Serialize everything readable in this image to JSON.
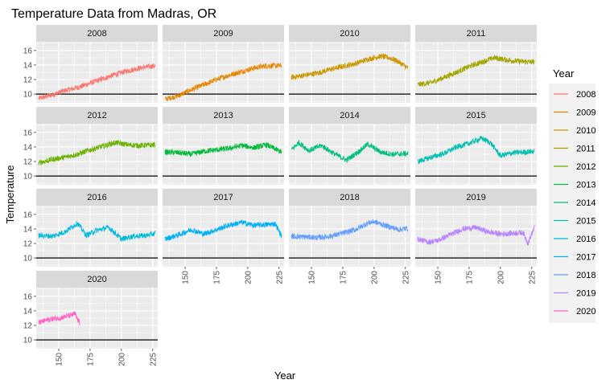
{
  "chart_data": {
    "type": "line",
    "title": "Temperature Data from Madras, OR",
    "xlabel": "Year",
    "ylabel": "Temperature",
    "xlim": [
      132,
      229
    ],
    "ylim": [
      8.8,
      17.2
    ],
    "x_ticks": [
      150,
      175,
      200,
      225
    ],
    "y_ticks": [
      10,
      12,
      14,
      16
    ],
    "reference_line_y": 10,
    "grid": true,
    "facet_layout": {
      "ncol": 4,
      "nrow": 4
    },
    "legend": {
      "title": "Year",
      "placement": "right"
    },
    "series": [
      {
        "name": "2008",
        "color": "#F8766D",
        "x_range": [
          134,
          227
        ],
        "x": [
          134,
          145,
          155,
          165,
          175,
          185,
          195,
          205,
          215,
          227
        ],
        "y": [
          9.4,
          9.9,
          10.5,
          10.9,
          11.5,
          12.1,
          12.7,
          13.2,
          13.6,
          13.9
        ]
      },
      {
        "name": "2009",
        "color": "#E58700",
        "x_range": [
          134,
          227
        ],
        "x": [
          134,
          145,
          155,
          165,
          175,
          185,
          195,
          205,
          215,
          227
        ],
        "y": [
          9.3,
          9.8,
          10.6,
          11.3,
          12.0,
          12.6,
          13.1,
          13.6,
          13.9,
          13.9
        ]
      },
      {
        "name": "2010",
        "color": "#C99800",
        "x_range": [
          134,
          227
        ],
        "x": [
          134,
          145,
          155,
          165,
          175,
          185,
          195,
          205,
          212,
          218,
          227
        ],
        "y": [
          12.3,
          12.6,
          12.9,
          13.4,
          13.8,
          14.2,
          14.8,
          15.2,
          15.0,
          14.6,
          13.6
        ]
      },
      {
        "name": "2011",
        "color": "#A3A500",
        "x_range": [
          134,
          227
        ],
        "x": [
          134,
          145,
          155,
          165,
          175,
          185,
          195,
          205,
          215,
          227
        ],
        "y": [
          11.3,
          11.6,
          12.3,
          13.0,
          13.8,
          14.4,
          15.0,
          14.7,
          14.5,
          14.4
        ]
      },
      {
        "name": "2012",
        "color": "#6BB100",
        "x_range": [
          134,
          227
        ],
        "x": [
          134,
          145,
          155,
          165,
          175,
          185,
          195,
          205,
          215,
          227
        ],
        "y": [
          11.8,
          12.3,
          12.6,
          13.0,
          13.6,
          14.1,
          14.6,
          14.3,
          14.2,
          14.3
        ]
      },
      {
        "name": "2013",
        "color": "#00BA38",
        "x_range": [
          134,
          227
        ],
        "x": [
          134,
          145,
          155,
          165,
          175,
          185,
          195,
          205,
          215,
          227
        ],
        "y": [
          13.3,
          13.2,
          13.0,
          13.4,
          13.6,
          13.8,
          14.2,
          13.9,
          14.3,
          13.3
        ]
      },
      {
        "name": "2014",
        "color": "#00BF7D",
        "x_range": [
          134,
          227
        ],
        "x": [
          134,
          140,
          148,
          158,
          168,
          178,
          188,
          195,
          205,
          215,
          227
        ],
        "y": [
          13.6,
          14.6,
          13.5,
          14.2,
          13.1,
          12.2,
          13.4,
          14.4,
          13.3,
          13.0,
          13.1
        ]
      },
      {
        "name": "2015",
        "color": "#00C0AF",
        "x_range": [
          134,
          227
        ],
        "x": [
          134,
          145,
          155,
          165,
          175,
          185,
          192,
          200,
          210,
          220,
          227
        ],
        "y": [
          12.0,
          12.6,
          13.1,
          14.0,
          14.5,
          15.2,
          14.6,
          12.8,
          13.2,
          13.3,
          13.4
        ]
      },
      {
        "name": "2016",
        "color": "#00BCD8",
        "x_range": [
          134,
          227
        ],
        "x": [
          134,
          145,
          155,
          165,
          172,
          180,
          190,
          200,
          210,
          220,
          227
        ],
        "y": [
          13.1,
          13.0,
          13.6,
          14.8,
          13.1,
          13.8,
          14.2,
          12.6,
          13.0,
          13.1,
          13.4
        ]
      },
      {
        "name": "2017",
        "color": "#00B0F6",
        "x_range": [
          134,
          227
        ],
        "x": [
          134,
          145,
          155,
          165,
          175,
          185,
          195,
          205,
          215,
          222,
          227
        ],
        "y": [
          12.6,
          13.2,
          13.9,
          13.3,
          13.9,
          14.5,
          14.9,
          14.5,
          14.6,
          14.7,
          13.0
        ]
      },
      {
        "name": "2018",
        "color": "#619CFF",
        "x_range": [
          134,
          227
        ],
        "x": [
          134,
          145,
          155,
          165,
          175,
          185,
          195,
          200,
          210,
          220,
          227
        ],
        "y": [
          13.0,
          12.9,
          12.8,
          13.0,
          13.4,
          13.9,
          14.8,
          15.0,
          14.4,
          13.9,
          14.1
        ]
      },
      {
        "name": "2019",
        "color": "#B983FF",
        "x_range": [
          134,
          227
        ],
        "x": [
          134,
          142,
          150,
          160,
          170,
          180,
          190,
          200,
          210,
          218,
          222,
          227
        ],
        "y": [
          12.6,
          12.2,
          12.4,
          13.2,
          14.0,
          14.2,
          13.6,
          13.3,
          13.4,
          13.5,
          12.0,
          14.2
        ]
      },
      {
        "name": "2020",
        "color": "#FF61C3",
        "x_range": [
          134,
          167
        ],
        "x": [
          134,
          140,
          145,
          150,
          155,
          160,
          163,
          165,
          167
        ],
        "y": [
          12.4,
          12.7,
          12.9,
          13.0,
          13.2,
          13.4,
          13.6,
          12.8,
          12.3
        ]
      }
    ]
  }
}
